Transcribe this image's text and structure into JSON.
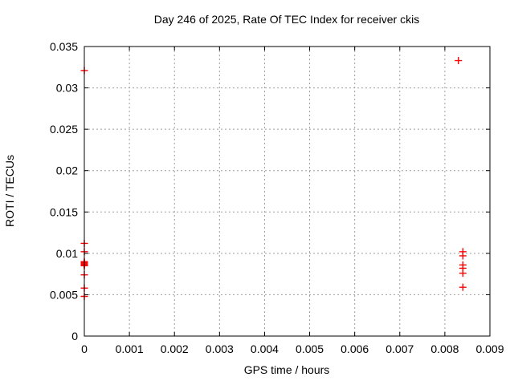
{
  "chart_data": {
    "type": "scatter",
    "title": "Day 246 of 2025, Rate Of TEC Index for receiver ckis",
    "xlabel": "GPS time / hours",
    "ylabel": "ROTI / TECUs",
    "xlim": [
      0,
      0.009
    ],
    "ylim": [
      0,
      0.035
    ],
    "grid": true,
    "legend": "none",
    "marker": {
      "shape": "plus",
      "size": 9,
      "color": "#ff0000"
    },
    "colors": {
      "marker": "#ff0000",
      "grid": "#9e9e9e",
      "axis": "#000000",
      "text": "#000000",
      "background": "#ffffff"
    },
    "xticks": {
      "values": [
        0,
        0.001,
        0.002,
        0.003,
        0.004,
        0.005,
        0.006,
        0.007,
        0.008,
        0.009
      ],
      "labels": [
        "0",
        "0.001",
        "0.002",
        "0.003",
        "0.004",
        "0.005",
        "0.006",
        "0.007",
        "0.008",
        "0.009"
      ]
    },
    "yticks": {
      "values": [
        0,
        0.005,
        0.01,
        0.015,
        0.02,
        0.025,
        0.03,
        0.035
      ],
      "labels": [
        "0",
        "0.005",
        "0.01",
        "0.015",
        "0.02",
        "0.025",
        "0.03",
        "0.035"
      ]
    },
    "series": [
      {
        "name": "ROTI",
        "color": "#ff0000",
        "points": [
          [
            0,
            0.0321
          ],
          [
            0,
            0.0112
          ],
          [
            0,
            0.0102
          ],
          [
            0,
            0.009
          ],
          [
            0,
            0.0089
          ],
          [
            0,
            0.0088
          ],
          [
            0,
            0.0087
          ],
          [
            0,
            0.0086
          ],
          [
            0,
            0.0085
          ],
          [
            0,
            0.0074
          ],
          [
            0,
            0.0058
          ],
          [
            0,
            0.0048
          ],
          [
            0.0083,
            0.0333
          ],
          [
            0.0084,
            0.0102
          ],
          [
            0.0084,
            0.0097
          ],
          [
            0.0084,
            0.0086
          ],
          [
            0.0084,
            0.0082
          ],
          [
            0.0084,
            0.0076
          ],
          [
            0.0084,
            0.0059
          ]
        ]
      }
    ]
  }
}
